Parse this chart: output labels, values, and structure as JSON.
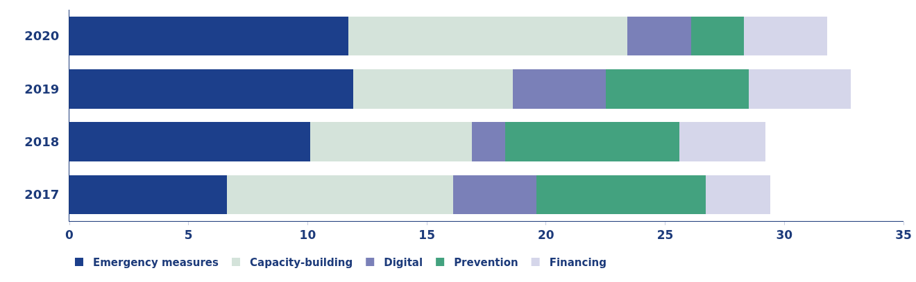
{
  "chart_data": {
    "type": "bar",
    "orientation": "horizontal",
    "stacked": true,
    "categories": [
      "2020",
      "2019",
      "2018",
      "2017"
    ],
    "series": [
      {
        "name": "Emergency measures",
        "color": "#1c3f8b",
        "values": [
          11.7,
          11.9,
          10.1,
          6.6
        ]
      },
      {
        "name": "Capacity-building",
        "color": "#d4e3da",
        "values": [
          11.7,
          6.7,
          6.8,
          9.5
        ]
      },
      {
        "name": "Digital",
        "color": "#7a80b8",
        "values": [
          2.7,
          3.9,
          1.4,
          3.5
        ]
      },
      {
        "name": "Prevention",
        "color": "#43a27f",
        "values": [
          2.2,
          6.0,
          7.3,
          7.1
        ]
      },
      {
        "name": "Financing",
        "color": "#d5d6ea",
        "values": [
          3.5,
          4.3,
          3.6,
          2.7
        ]
      }
    ],
    "xlim": [
      0,
      35
    ],
    "xticks": [
      0,
      5,
      10,
      15,
      20,
      25,
      30,
      35
    ],
    "grid": false,
    "legend": "bottom left"
  }
}
